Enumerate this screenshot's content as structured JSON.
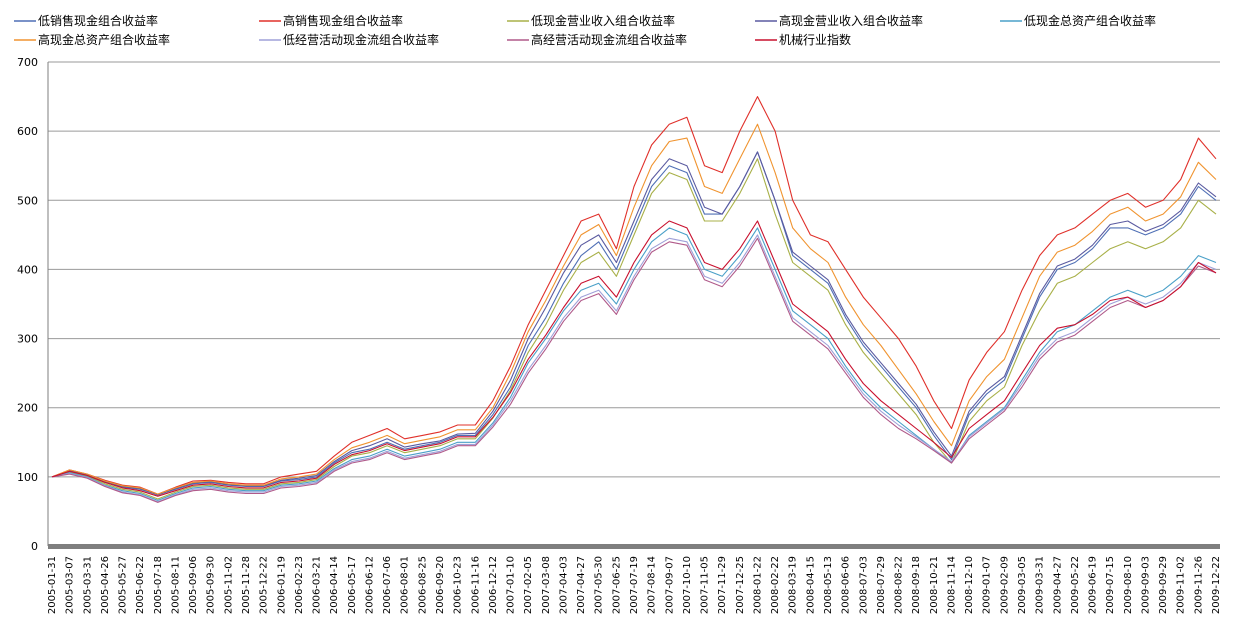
{
  "chart_data": {
    "type": "line",
    "title": "",
    "xlabel": "",
    "ylabel": "",
    "ylim": [
      0,
      700
    ],
    "yticks": [
      0,
      100,
      200,
      300,
      400,
      500,
      600,
      700
    ],
    "grid": "horizontal",
    "legend_position": "top",
    "x": [
      "2005-01-31",
      "2005-03-07",
      "2005-03-31",
      "2005-04-26",
      "2005-05-27",
      "2005-06-22",
      "2005-07-18",
      "2005-08-11",
      "2005-09-06",
      "2005-09-30",
      "2005-11-02",
      "2005-11-28",
      "2005-12-22",
      "2006-01-19",
      "2006-02-23",
      "2006-03-21",
      "2006-04-14",
      "2006-05-17",
      "2006-06-12",
      "2006-07-06",
      "2006-08-01",
      "2006-08-25",
      "2006-09-20",
      "2006-10-23",
      "2006-11-16",
      "2006-12-12",
      "2007-01-10",
      "2007-02-05",
      "2007-03-08",
      "2007-04-03",
      "2007-04-27",
      "2007-05-30",
      "2007-06-25",
      "2007-07-19",
      "2007-08-14",
      "2007-09-07",
      "2007-10-10",
      "2007-11-05",
      "2007-11-29",
      "2007-12-25",
      "2008-01-22",
      "2008-02-22",
      "2008-03-19",
      "2008-04-15",
      "2008-05-13",
      "2008-06-06",
      "2008-07-03",
      "2008-07-29",
      "2008-08-22",
      "2008-09-18",
      "2008-10-21",
      "2008-11-14",
      "2008-12-10",
      "2009-01-07",
      "2009-02-09",
      "2009-03-05",
      "2009-03-31",
      "2009-04-27",
      "2009-05-22",
      "2009-06-19",
      "2009-07-15",
      "2009-08-10",
      "2009-09-03",
      "2009-09-29",
      "2009-11-02",
      "2009-11-26",
      "2009-12-22"
    ],
    "series": [
      {
        "name": "低销售现金组合收益率",
        "color": "#4f6fb5",
        "values": [
          100,
          108,
          102,
          92,
          85,
          82,
          74,
          82,
          90,
          92,
          88,
          86,
          86,
          94,
          96,
          100,
          120,
          135,
          140,
          150,
          140,
          145,
          150,
          160,
          160,
          190,
          230,
          290,
          330,
          380,
          420,
          440,
          400,
          460,
          520,
          550,
          540,
          480,
          480,
          520,
          570,
          500,
          420,
          400,
          380,
          330,
          290,
          260,
          230,
          200,
          160,
          125,
          190,
          220,
          240,
          300,
          360,
          400,
          410,
          430,
          460,
          460,
          450,
          460,
          480,
          520,
          500
        ]
      },
      {
        "name": "高销售现金组合收益率",
        "color": "#e0302a",
        "values": [
          100,
          110,
          104,
          95,
          88,
          85,
          75,
          85,
          94,
          95,
          92,
          90,
          90,
          100,
          104,
          108,
          130,
          150,
          160,
          170,
          155,
          160,
          165,
          175,
          175,
          210,
          260,
          320,
          370,
          420,
          470,
          480,
          430,
          520,
          580,
          610,
          620,
          550,
          540,
          600,
          650,
          600,
          500,
          450,
          440,
          400,
          360,
          330,
          300,
          260,
          210,
          170,
          240,
          280,
          310,
          370,
          420,
          450,
          460,
          480,
          500,
          510,
          490,
          500,
          530,
          590,
          560
        ]
      },
      {
        "name": "低现金营业收入组合收益率",
        "color": "#a8b048",
        "values": [
          100,
          107,
          101,
          90,
          82,
          78,
          68,
          78,
          86,
          88,
          84,
          82,
          82,
          90,
          92,
          96,
          115,
          130,
          135,
          145,
          135,
          140,
          145,
          155,
          155,
          185,
          225,
          280,
          320,
          370,
          410,
          425,
          390,
          450,
          510,
          540,
          530,
          470,
          470,
          510,
          560,
          480,
          410,
          390,
          370,
          320,
          280,
          250,
          220,
          190,
          150,
          120,
          180,
          210,
          230,
          290,
          340,
          380,
          390,
          410,
          430,
          440,
          430,
          440,
          460,
          500,
          480
        ]
      },
      {
        "name": "高现金营业收入组合收益率",
        "color": "#5a5aa0",
        "values": [
          100,
          109,
          103,
          93,
          86,
          83,
          74,
          83,
          91,
          93,
          89,
          87,
          87,
          95,
          98,
          102,
          122,
          138,
          145,
          155,
          143,
          148,
          152,
          162,
          163,
          195,
          240,
          300,
          345,
          395,
          435,
          450,
          410,
          470,
          530,
          560,
          550,
          490,
          480,
          520,
          570,
          500,
          425,
          405,
          385,
          335,
          295,
          265,
          235,
          205,
          165,
          130,
          195,
          225,
          245,
          305,
          365,
          405,
          415,
          435,
          465,
          470,
          455,
          465,
          485,
          525,
          505
        ]
      },
      {
        "name": "低现金总资产组合收益率",
        "color": "#4aa0c8",
        "values": [
          100,
          106,
          100,
          88,
          80,
          76,
          66,
          76,
          84,
          86,
          82,
          80,
          80,
          88,
          90,
          94,
          112,
          125,
          130,
          140,
          130,
          135,
          140,
          150,
          150,
          178,
          215,
          265,
          300,
          340,
          370,
          380,
          350,
          400,
          440,
          460,
          450,
          400,
          390,
          420,
          460,
          400,
          340,
          320,
          300,
          260,
          225,
          200,
          180,
          160,
          140,
          120,
          160,
          180,
          200,
          240,
          280,
          310,
          320,
          340,
          360,
          370,
          360,
          370,
          390,
          420,
          410
        ]
      },
      {
        "name": "高现金总资产组合收益率",
        "color": "#f09430",
        "values": [
          100,
          110,
          104,
          94,
          87,
          84,
          75,
          84,
          92,
          94,
          90,
          88,
          88,
          97,
          100,
          104,
          125,
          142,
          150,
          160,
          148,
          153,
          158,
          168,
          168,
          200,
          250,
          310,
          355,
          405,
          450,
          465,
          420,
          490,
          550,
          585,
          590,
          520,
          510,
          560,
          610,
          540,
          460,
          430,
          410,
          360,
          320,
          290,
          255,
          220,
          180,
          145,
          210,
          245,
          270,
          330,
          390,
          425,
          435,
          455,
          480,
          490,
          470,
          480,
          505,
          555,
          530
        ]
      },
      {
        "name": "低经营活动现金流组合收益率",
        "color": "#9fa0d8",
        "values": [
          100,
          105,
          99,
          87,
          78,
          74,
          64,
          74,
          82,
          84,
          80,
          78,
          78,
          86,
          88,
          92,
          110,
          122,
          127,
          137,
          127,
          132,
          137,
          147,
          147,
          175,
          210,
          255,
          290,
          330,
          360,
          370,
          340,
          390,
          430,
          445,
          440,
          390,
          380,
          410,
          450,
          390,
          330,
          310,
          290,
          255,
          220,
          195,
          175,
          158,
          140,
          122,
          158,
          178,
          198,
          235,
          275,
          300,
          310,
          330,
          350,
          360,
          350,
          360,
          380,
          410,
          400
        ]
      },
      {
        "name": "高经营活动现金流组合收益率",
        "color": "#b05a8a",
        "values": [
          100,
          104,
          98,
          86,
          77,
          73,
          63,
          73,
          80,
          82,
          78,
          76,
          76,
          84,
          86,
          90,
          108,
          120,
          125,
          135,
          125,
          130,
          135,
          145,
          145,
          172,
          205,
          250,
          285,
          325,
          355,
          365,
          335,
          385,
          425,
          440,
          435,
          385,
          375,
          405,
          445,
          385,
          325,
          305,
          285,
          250,
          215,
          190,
          170,
          155,
          138,
          120,
          155,
          175,
          195,
          230,
          270,
          295,
          305,
          325,
          345,
          355,
          345,
          355,
          375,
          405,
          395
        ]
      },
      {
        "name": "机械行业指数",
        "color": "#c8102e",
        "values": [
          100,
          108,
          102,
          92,
          84,
          80,
          72,
          80,
          88,
          90,
          86,
          84,
          84,
          92,
          94,
          98,
          118,
          132,
          138,
          148,
          138,
          143,
          148,
          158,
          158,
          186,
          222,
          270,
          305,
          345,
          380,
          390,
          360,
          410,
          450,
          470,
          460,
          410,
          400,
          430,
          470,
          410,
          350,
          330,
          310,
          270,
          235,
          210,
          190,
          170,
          150,
          128,
          170,
          190,
          210,
          250,
          290,
          315,
          320,
          335,
          355,
          360,
          345,
          355,
          375,
          410,
          395
        ]
      }
    ]
  }
}
